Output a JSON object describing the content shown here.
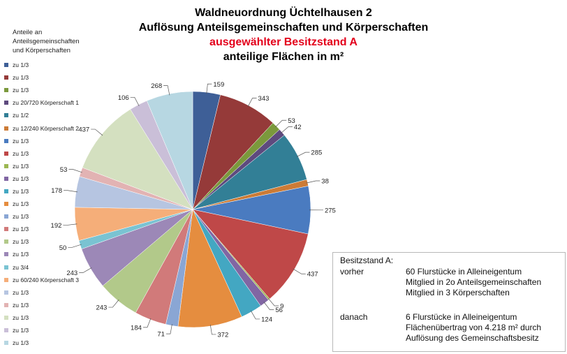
{
  "chart_data": {
    "type": "pie",
    "title": "Waldneuordnung Üchtelhausen 2",
    "subtitle": "Auflösung Anteilsgemeinschaften und Körperschaften",
    "subtitle_highlight": "ausgewählter Besitzstand A",
    "unit_line": "anteilige Flächen in m²",
    "legend_title": [
      "Anteile an",
      "Anteilsgemeinschaften",
      "und Körperschaften"
    ],
    "legend_position": "left",
    "categories": [
      "zu 1/3",
      "zu 1/3",
      "zu 1/3",
      "zu 20/720 Körperschaft 1",
      "zu 1/2",
      "zu 12/240 Körperschaft 2",
      "zu 1/3",
      "zu 1/3",
      "zu 1/3",
      "zu 1/3",
      "zu 1/3",
      "zu 1/3",
      "zu 1/3",
      "zu 1/3",
      "zu 1/3",
      "zu 1/3",
      "zu 3/4",
      "zu 60/240 Körperschaft 3",
      "zu 1/3",
      "zu 1/3",
      "zu 1/3",
      "zu 1/3",
      "zu 1/3"
    ],
    "slices": [
      {
        "value": 159,
        "label": "159"
      },
      {
        "value": 343,
        "label": "343"
      },
      {
        "value": 53,
        "label": "53"
      },
      {
        "value": 42,
        "label": "42"
      },
      {
        "value": 285,
        "label": "285"
      },
      {
        "value": 38,
        "label": "38"
      },
      {
        "value": 275,
        "label": "275"
      },
      {
        "value": 437,
        "label": "437"
      },
      {
        "value": 9,
        "label": "9"
      },
      {
        "value": 56,
        "label": "56"
      },
      {
        "value": 124,
        "label": "124"
      },
      {
        "value": 372,
        "label": "372"
      },
      {
        "value": 71,
        "label": "71"
      },
      {
        "value": 184,
        "label": "184"
      },
      {
        "value": 243,
        "label": "243"
      },
      {
        "value": 243,
        "label": "243"
      },
      {
        "value": 50,
        "label": "50"
      },
      {
        "value": 192,
        "label": "192"
      },
      {
        "value": 178,
        "label": "178"
      },
      {
        "value": 53,
        "label": "53"
      },
      {
        "value": 437,
        "label": "437"
      },
      {
        "value": 106,
        "label": "106"
      },
      {
        "value": 268,
        "label": "268"
      }
    ],
    "colors": [
      "#3e5f97",
      "#953a39",
      "#7b993c",
      "#5e4a7e",
      "#327f96",
      "#cc7b36",
      "#4a7bc0",
      "#bf4848",
      "#9cb752",
      "#8166a3",
      "#43a7c2",
      "#e58d3f",
      "#8aa6d4",
      "#d17a7a",
      "#b2c98a",
      "#9c88b7",
      "#7ac3d2",
      "#f5ae79",
      "#b6c5e1",
      "#e2b3b3",
      "#d4e0c0",
      "#cabfd8",
      "#b7d7e2"
    ]
  },
  "info_box": {
    "heading": "Besitzstand A:",
    "before_label": "vorher",
    "before_lines": [
      "60 Flurstücke in Alleineigentum",
      "Mitglied in 2o Anteilsgemeinschaften",
      "Mitglied in 3 Körperschaften"
    ],
    "after_label": "danach",
    "after_lines": [
      "6 Flurstücke in Alleineigentum",
      "Flächenübertrag  von 4.218 m² durch",
      "Auflösung des Gemeinschaftsbesitz"
    ]
  }
}
